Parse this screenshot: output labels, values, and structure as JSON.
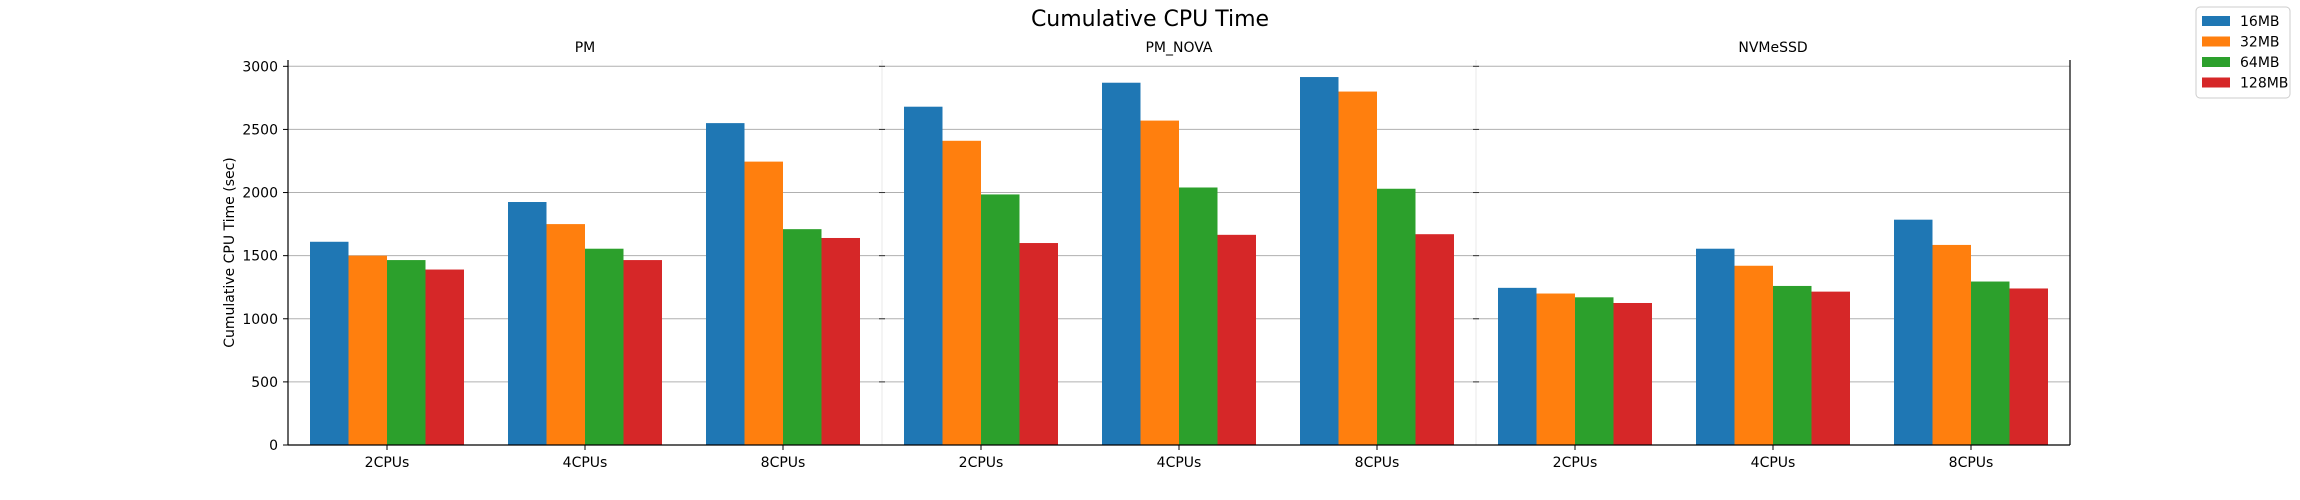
{
  "chart_data": {
    "type": "bar",
    "title": "Cumulative CPU Time",
    "ylabel": "Cumulative CPU Time (sec)",
    "xlabel": "",
    "ylim": [
      0,
      3050
    ],
    "yticks": [
      0,
      500,
      1000,
      1500,
      2000,
      2500,
      3000
    ],
    "grid": "horizontal",
    "legend_position": "top-right",
    "series": [
      {
        "name": "16MB",
        "color": "#1f77b4"
      },
      {
        "name": "32MB",
        "color": "#ff7f0e"
      },
      {
        "name": "64MB",
        "color": "#2ca02c"
      },
      {
        "name": "128MB",
        "color": "#d62728"
      }
    ],
    "panels": [
      {
        "title": "PM",
        "categories": [
          "2CPUs",
          "4CPUs",
          "8CPUs"
        ],
        "values": [
          [
            1610,
            1500,
            1465,
            1390
          ],
          [
            1925,
            1750,
            1555,
            1465
          ],
          [
            2550,
            2245,
            1710,
            1640
          ]
        ]
      },
      {
        "title": "PM_NOVA",
        "categories": [
          "2CPUs",
          "4CPUs",
          "8CPUs"
        ],
        "values": [
          [
            2680,
            2410,
            1985,
            1600
          ],
          [
            2870,
            2570,
            2040,
            1665
          ],
          [
            2915,
            2800,
            2030,
            1670
          ]
        ]
      },
      {
        "title": "NVMeSSD",
        "categories": [
          "2CPUs",
          "4CPUs",
          "8CPUs"
        ],
        "values": [
          [
            1245,
            1200,
            1170,
            1125
          ],
          [
            1555,
            1420,
            1260,
            1215
          ],
          [
            1785,
            1585,
            1295,
            1240
          ]
        ]
      }
    ]
  }
}
